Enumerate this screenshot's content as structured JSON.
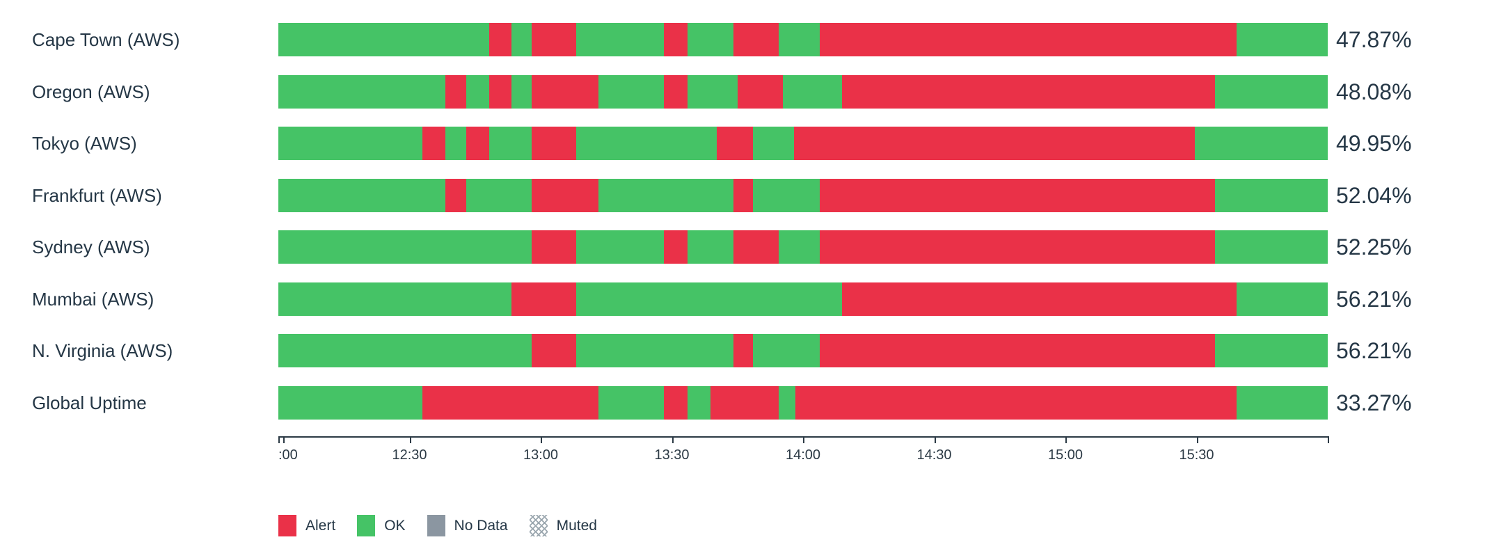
{
  "colors": {
    "ok": "#45c366",
    "alert": "#ea3148",
    "no_data": "#8b96a1",
    "muted_hatch": "#9aa6ae",
    "text": "#253746",
    "axis": "#2c3a45"
  },
  "chart_data": {
    "type": "bar",
    "subtype": "horizontal-status-timeline",
    "title": "",
    "xlabel": "",
    "ylabel": "",
    "grid": false,
    "legend_position": "bottom-left",
    "x_axis": {
      "start": "12:00",
      "end": "16:00",
      "ticks": [
        {
          "pos_pct": 0,
          "label": ":00",
          "align": "start"
        },
        {
          "pos_pct": 0.45,
          "label": ""
        },
        {
          "pos_pct": 12.5,
          "label": "12:30"
        },
        {
          "pos_pct": 25,
          "label": "13:00"
        },
        {
          "pos_pct": 37.5,
          "label": "13:30"
        },
        {
          "pos_pct": 50,
          "label": "14:00"
        },
        {
          "pos_pct": 62.5,
          "label": "14:30"
        },
        {
          "pos_pct": 75,
          "label": "15:00"
        },
        {
          "pos_pct": 87.5,
          "label": "15:30"
        },
        {
          "pos_pct": 100,
          "label": ""
        }
      ]
    },
    "rows": [
      {
        "label": "Cape Town (AWS)",
        "uptime": "47.87%",
        "segments": [
          {
            "status": "ok",
            "width_pct": 20.1
          },
          {
            "status": "alert",
            "width_pct": 2.1
          },
          {
            "status": "ok",
            "width_pct": 1.95
          },
          {
            "status": "alert",
            "width_pct": 4.25
          },
          {
            "status": "ok",
            "width_pct": 8.34
          },
          {
            "status": "alert",
            "width_pct": 2.26
          },
          {
            "status": "ok",
            "width_pct": 4.4
          },
          {
            "status": "alert",
            "width_pct": 4.3
          },
          {
            "status": "ok",
            "width_pct": 3.9
          },
          {
            "status": "alert",
            "width_pct": 39.7
          },
          {
            "status": "ok",
            "width_pct": 8.7
          }
        ]
      },
      {
        "label": "Oregon (AWS)",
        "uptime": "48.08%",
        "segments": [
          {
            "status": "ok",
            "width_pct": 15.9
          },
          {
            "status": "alert",
            "width_pct": 2.0
          },
          {
            "status": "ok",
            "width_pct": 2.2
          },
          {
            "status": "alert",
            "width_pct": 2.1
          },
          {
            "status": "ok",
            "width_pct": 1.95
          },
          {
            "status": "alert",
            "width_pct": 6.35
          },
          {
            "status": "ok",
            "width_pct": 6.24
          },
          {
            "status": "alert",
            "width_pct": 2.26
          },
          {
            "status": "ok",
            "width_pct": 4.75
          },
          {
            "status": "alert",
            "width_pct": 4.35
          },
          {
            "status": "ok",
            "width_pct": 5.6
          },
          {
            "status": "alert",
            "width_pct": 35.56
          },
          {
            "status": "ok",
            "width_pct": 10.74
          }
        ]
      },
      {
        "label": "Tokyo (AWS)",
        "uptime": "49.95%",
        "segments": [
          {
            "status": "ok",
            "width_pct": 13.7
          },
          {
            "status": "alert",
            "width_pct": 2.2
          },
          {
            "status": "ok",
            "width_pct": 2.0
          },
          {
            "status": "alert",
            "width_pct": 2.2
          },
          {
            "status": "ok",
            "width_pct": 4.05
          },
          {
            "status": "alert",
            "width_pct": 4.25
          },
          {
            "status": "ok",
            "width_pct": 13.4
          },
          {
            "status": "alert",
            "width_pct": 3.4
          },
          {
            "status": "ok",
            "width_pct": 3.96
          },
          {
            "status": "alert",
            "width_pct": 38.19
          },
          {
            "status": "ok",
            "width_pct": 12.65
          }
        ]
      },
      {
        "label": "Frankfurt (AWS)",
        "uptime": "52.04%",
        "segments": [
          {
            "status": "ok",
            "width_pct": 15.9
          },
          {
            "status": "alert",
            "width_pct": 2.0
          },
          {
            "status": "ok",
            "width_pct": 6.25
          },
          {
            "status": "alert",
            "width_pct": 6.35
          },
          {
            "status": "ok",
            "width_pct": 12.9
          },
          {
            "status": "alert",
            "width_pct": 1.8
          },
          {
            "status": "ok",
            "width_pct": 6.4
          },
          {
            "status": "alert",
            "width_pct": 37.66
          },
          {
            "status": "ok",
            "width_pct": 10.74
          }
        ]
      },
      {
        "label": "Sydney (AWS)",
        "uptime": "52.25%",
        "segments": [
          {
            "status": "ok",
            "width_pct": 24.15
          },
          {
            "status": "alert",
            "width_pct": 4.25
          },
          {
            "status": "ok",
            "width_pct": 8.34
          },
          {
            "status": "alert",
            "width_pct": 2.26
          },
          {
            "status": "ok",
            "width_pct": 4.4
          },
          {
            "status": "alert",
            "width_pct": 4.3
          },
          {
            "status": "ok",
            "width_pct": 3.9
          },
          {
            "status": "alert",
            "width_pct": 37.66
          },
          {
            "status": "ok",
            "width_pct": 10.74
          }
        ]
      },
      {
        "label": "Mumbai (AWS)",
        "uptime": "56.21%",
        "segments": [
          {
            "status": "ok",
            "width_pct": 22.2
          },
          {
            "status": "alert",
            "width_pct": 6.2
          },
          {
            "status": "ok",
            "width_pct": 25.3
          },
          {
            "status": "alert",
            "width_pct": 37.6
          },
          {
            "status": "ok",
            "width_pct": 8.7
          }
        ]
      },
      {
        "label": "N. Virginia (AWS)",
        "uptime": "56.21%",
        "segments": [
          {
            "status": "ok",
            "width_pct": 24.15
          },
          {
            "status": "alert",
            "width_pct": 4.25
          },
          {
            "status": "ok",
            "width_pct": 15.0
          },
          {
            "status": "alert",
            "width_pct": 1.8
          },
          {
            "status": "ok",
            "width_pct": 6.4
          },
          {
            "status": "alert",
            "width_pct": 37.66
          },
          {
            "status": "ok",
            "width_pct": 10.74
          }
        ]
      },
      {
        "label": "Global Uptime",
        "uptime": "33.27%",
        "segments": [
          {
            "status": "ok",
            "width_pct": 13.7
          },
          {
            "status": "alert",
            "width_pct": 16.8
          },
          {
            "status": "ok",
            "width_pct": 6.24
          },
          {
            "status": "alert",
            "width_pct": 2.26
          },
          {
            "status": "ok",
            "width_pct": 2.2
          },
          {
            "status": "alert",
            "width_pct": 6.5
          },
          {
            "status": "ok",
            "width_pct": 1.6
          },
          {
            "status": "alert",
            "width_pct": 42.0
          },
          {
            "status": "ok",
            "width_pct": 8.7
          }
        ]
      }
    ],
    "legend": [
      {
        "id": "alert",
        "label": "Alert"
      },
      {
        "id": "ok",
        "label": "OK"
      },
      {
        "id": "no_data",
        "label": "No Data"
      },
      {
        "id": "muted",
        "label": "Muted"
      }
    ]
  }
}
